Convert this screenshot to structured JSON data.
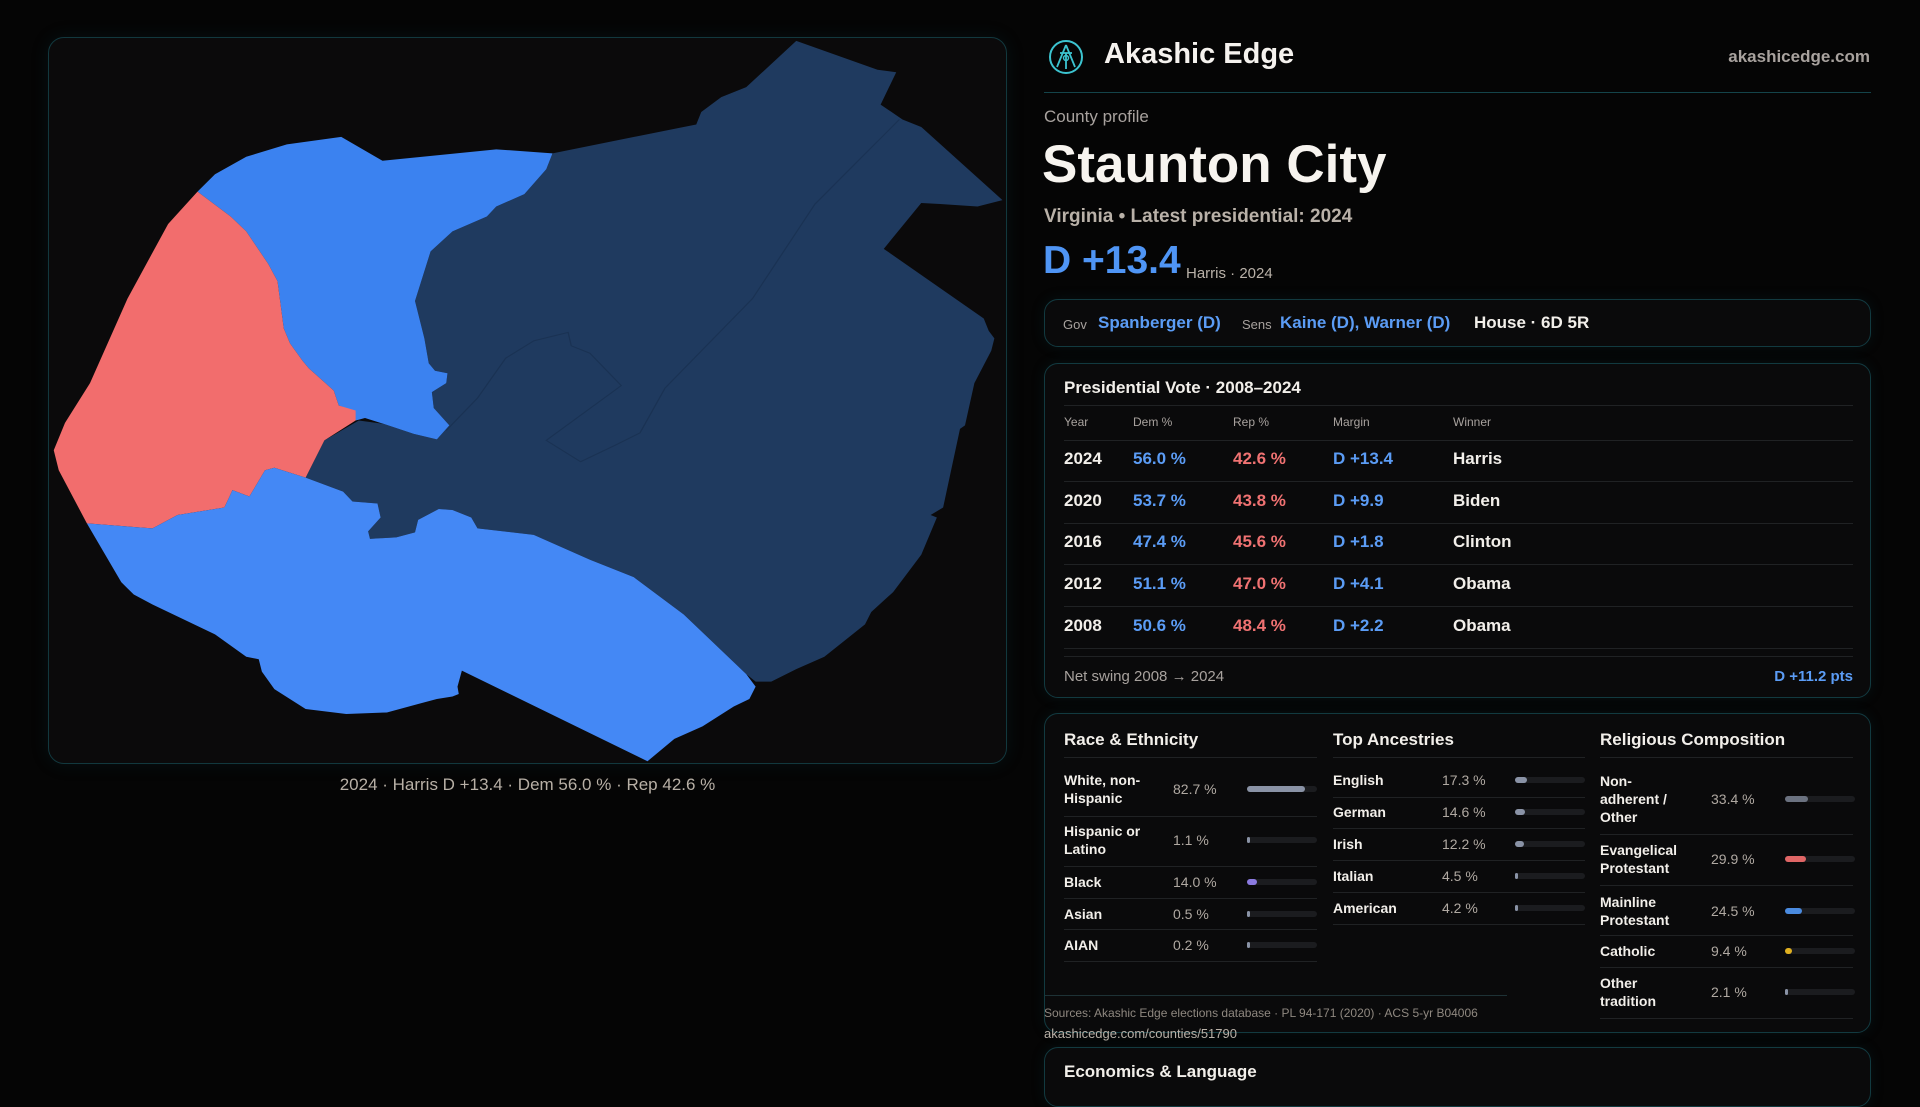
{
  "header": {
    "brand": "Akashic Edge",
    "site": "akashicedge.com",
    "logo_icon": "compass-key-logo-icon"
  },
  "profile": {
    "kicker": "County profile",
    "name": "Staunton City",
    "subtitle": "Virginia • Latest presidential: 2024",
    "margin": "D +13.4",
    "margin_note": "Harris · 2024"
  },
  "officials": {
    "gov_label": "Gov",
    "gov": "Spanberger (D)",
    "sens_label": "Sens",
    "sens": "Kaine (D), Warner (D)",
    "house": "House · 6D 5R"
  },
  "map": {
    "caption": "2024 · Harris D +13.4 · Dem 56.0 % · Rep 42.6 %",
    "colors": {
      "dem_strong": "#4488f5",
      "dem_lean": "#3b82f0",
      "dem_dark": "#1f3a5f",
      "rep": "#f26d6d"
    }
  },
  "presidential": {
    "title": "Presidential Vote · 2008–2024",
    "headers": [
      "Year",
      "Dem %",
      "Rep %",
      "Margin",
      "Winner"
    ],
    "rows": [
      {
        "year": "2024",
        "dem": "56.0 %",
        "rep": "42.6 %",
        "margin": "D +13.4",
        "winner": "Harris"
      },
      {
        "year": "2020",
        "dem": "53.7 %",
        "rep": "43.8 %",
        "margin": "D +9.9",
        "winner": "Biden"
      },
      {
        "year": "2016",
        "dem": "47.4 %",
        "rep": "45.6 %",
        "margin": "D +1.8",
        "winner": "Clinton"
      },
      {
        "year": "2012",
        "dem": "51.1 %",
        "rep": "47.0 %",
        "margin": "D +4.1",
        "winner": "Obama"
      },
      {
        "year": "2008",
        "dem": "50.6 %",
        "rep": "48.4 %",
        "margin": "D +2.2",
        "winner": "Obama"
      }
    ],
    "swing_label": "Net swing 2008 → 2024",
    "swing_value": "D +11.2 pts"
  },
  "race": {
    "title": "Race & Ethnicity",
    "items": [
      {
        "label": "White, non-Hispanic",
        "value": "82.7 %",
        "pct": 82.7,
        "color": "#8a93a6"
      },
      {
        "label": "Hispanic or Latino",
        "value": "1.1 %",
        "pct": 1.1,
        "color": "#8a93a6"
      },
      {
        "label": "Black",
        "value": "14.0 %",
        "pct": 14.0,
        "color": "#8b7ae0"
      },
      {
        "label": "Asian",
        "value": "0.5 %",
        "pct": 0.5,
        "color": "#8a93a6"
      },
      {
        "label": "AIAN",
        "value": "0.2 %",
        "pct": 0.2,
        "color": "#8a93a6"
      }
    ]
  },
  "ancestry": {
    "title": "Top Ancestries",
    "items": [
      {
        "label": "English",
        "value": "17.3 %",
        "pct": 17.3,
        "color": "#8a93a6"
      },
      {
        "label": "German",
        "value": "14.6 %",
        "pct": 14.6,
        "color": "#8a93a6"
      },
      {
        "label": "Irish",
        "value": "12.2 %",
        "pct": 12.2,
        "color": "#8a93a6"
      },
      {
        "label": "Italian",
        "value": "4.5 %",
        "pct": 4.5,
        "color": "#8a93a6"
      },
      {
        "label": "American",
        "value": "4.2 %",
        "pct": 4.2,
        "color": "#8a93a6"
      }
    ]
  },
  "religion": {
    "title": "Religious Composition",
    "items": [
      {
        "label": "Non-adherent / Other",
        "value": "33.4 %",
        "pct": 33.4,
        "color": "#6b7280"
      },
      {
        "label": "Evangelical Protestant",
        "value": "29.9 %",
        "pct": 29.9,
        "color": "#e06666"
      },
      {
        "label": "Mainline Protestant",
        "value": "24.5 %",
        "pct": 24.5,
        "color": "#4a8be0"
      },
      {
        "label": "Catholic",
        "value": "9.4 %",
        "pct": 9.4,
        "color": "#e0b020"
      },
      {
        "label": "Other tradition",
        "value": "2.1 %",
        "pct": 2.1,
        "color": "#8a93a6"
      }
    ]
  },
  "sources": "Sources: Akashic Edge elections database · PL 94-171 (2020) · ACS 5-yr B04006",
  "url": "akashicedge.com/counties/51790",
  "economics": {
    "title": "Economics & Language"
  }
}
